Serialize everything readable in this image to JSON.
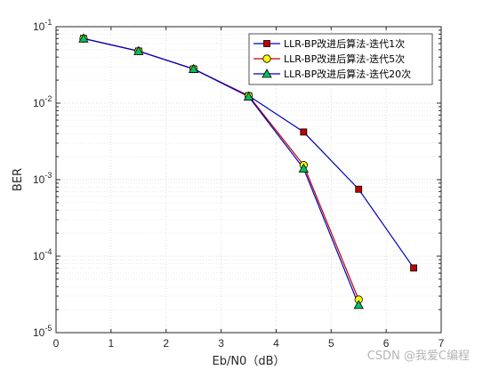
{
  "chart_data": {
    "type": "line",
    "xlabel": "Eb/N0（dB）",
    "ylabel": "BER",
    "xlim": [
      0,
      7
    ],
    "ylim": [
      1e-05,
      0.1
    ],
    "yscale": "log",
    "grid": true,
    "minor_grid": true,
    "legend_position": "top-right",
    "x_ticks": [
      "0",
      "1",
      "2",
      "3",
      "4",
      "5",
      "6",
      "7"
    ],
    "series": [
      {
        "name": "LLR-BP改进后算法-迭代1次",
        "color": "#0000c0",
        "marker": "square",
        "marker_fill": "#c00000",
        "x": [
          0.5,
          1.5,
          2.5,
          3.5,
          4.5,
          5.5,
          6.5
        ],
        "y": [
          0.07,
          0.048,
          0.028,
          0.0125,
          0.0042,
          0.00075,
          7e-05
        ]
      },
      {
        "name": "LLR-BP改进后算法-迭代5次",
        "color": "#c00000",
        "marker": "circle",
        "marker_fill": "#ffff00",
        "x": [
          0.5,
          1.5,
          2.5,
          3.5,
          4.5,
          5.5
        ],
        "y": [
          0.07,
          0.048,
          0.028,
          0.0125,
          0.00155,
          2.7e-05
        ]
      },
      {
        "name": "LLR-BP改进后算法-迭代20次",
        "color": "#0000c0",
        "marker": "triangle",
        "marker_fill": "#00c060",
        "x": [
          0.5,
          1.5,
          2.5,
          3.5,
          4.5,
          5.5
        ],
        "y": [
          0.07,
          0.048,
          0.028,
          0.0122,
          0.0014,
          2.3e-05
        ]
      }
    ]
  },
  "watermark": "CSDN @我爱C编程"
}
